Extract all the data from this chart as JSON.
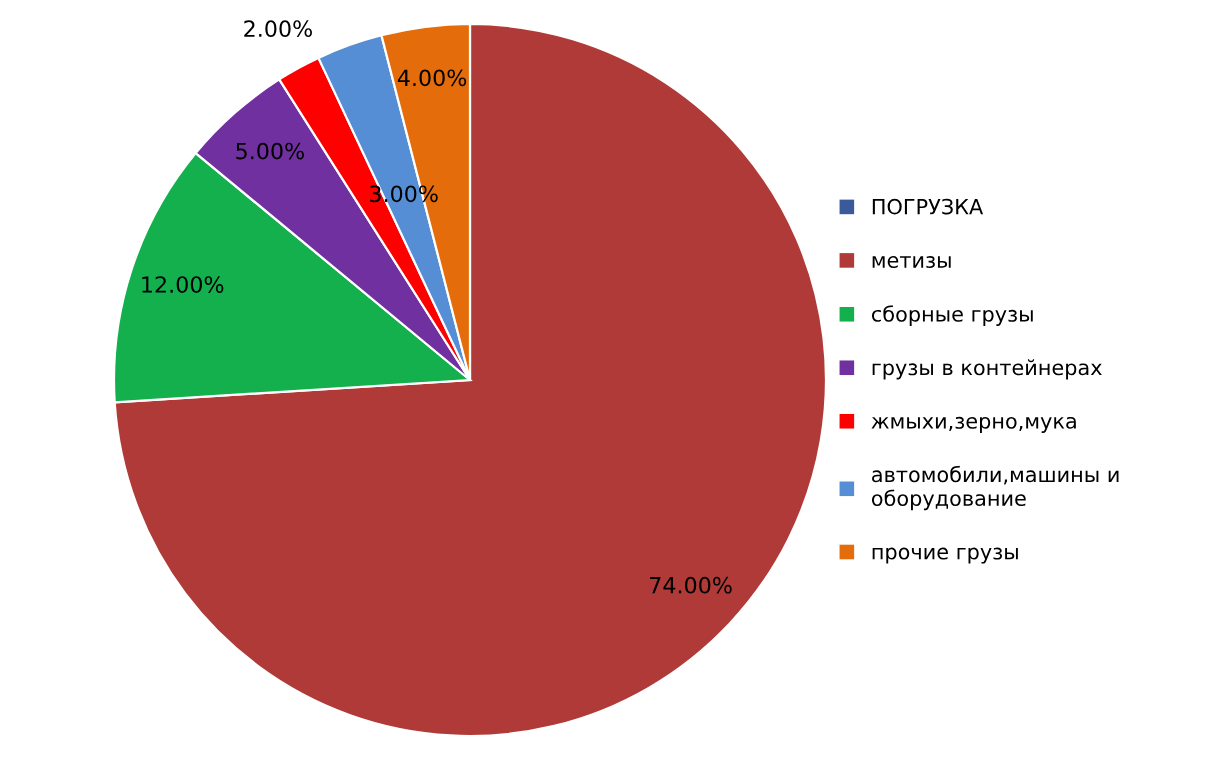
{
  "chart_data": {
    "type": "pie",
    "categories": [
      "ПОГРУЗКА",
      "метизы",
      "сборные грузы",
      "грузы в контейнерах",
      "жмыхи,зерно,мука",
      "автомобили,машины и оборудование",
      "прочие грузы"
    ],
    "values": [
      0,
      74,
      12,
      5,
      2,
      3,
      4
    ],
    "colors": [
      "#3a5a9c",
      "#b03a37",
      "#14b04e",
      "#7030a0",
      "#ff0000",
      "#558ed5",
      "#e46c0a"
    ],
    "value_labels": [
      null,
      "74.00%",
      "12.00%",
      "5.00%",
      "2.00%",
      "3.00%",
      "4.00%"
    ],
    "legend": "right"
  }
}
